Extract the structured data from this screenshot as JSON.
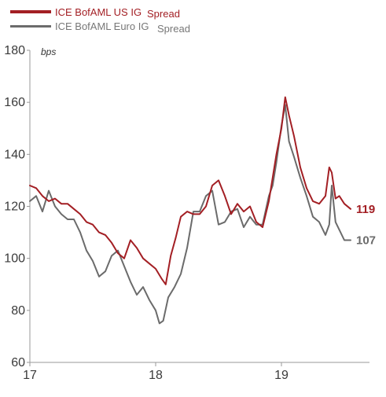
{
  "chart_data": {
    "type": "line",
    "ylabel": "bps",
    "ylim": [
      60,
      180
    ],
    "yticks": [
      60,
      80,
      100,
      120,
      140,
      160,
      180
    ],
    "xlim": [
      17.0,
      19.7
    ],
    "xticks": [
      {
        "value": 17,
        "label": "17"
      },
      {
        "value": 18,
        "label": "18"
      },
      {
        "value": 19,
        "label": "19"
      }
    ],
    "grid": false,
    "legend_position": "top-left",
    "legend": [
      {
        "name": "ICE BofAML US IG",
        "suffix": "Spread",
        "color": "#a31f24"
      },
      {
        "name": "ICE BofAML Euro IG",
        "suffix": "Spread",
        "color": "#6b6b6b"
      }
    ],
    "series": [
      {
        "id": "us",
        "color": "#a31f24",
        "end_label": "119",
        "x": [
          17.0,
          17.05,
          17.1,
          17.15,
          17.2,
          17.25,
          17.3,
          17.35,
          17.4,
          17.45,
          17.5,
          17.55,
          17.6,
          17.65,
          17.7,
          17.75,
          17.8,
          17.85,
          17.9,
          17.95,
          18.0,
          18.05,
          18.08,
          18.12,
          18.16,
          18.2,
          18.25,
          18.3,
          18.35,
          18.4,
          18.45,
          18.5,
          18.55,
          18.6,
          18.65,
          18.7,
          18.75,
          18.8,
          18.85,
          18.9,
          18.93,
          18.96,
          19.0,
          19.03,
          19.06,
          19.1,
          19.15,
          19.2,
          19.25,
          19.3,
          19.35,
          19.38,
          19.4,
          19.43,
          19.46,
          19.5,
          19.55
        ],
        "y": [
          128,
          127,
          124,
          122,
          123,
          121,
          121,
          119,
          117,
          114,
          113,
          110,
          109,
          106,
          102,
          100,
          107,
          104,
          100,
          98,
          96,
          92,
          90,
          101,
          108,
          116,
          118,
          117,
          117,
          120,
          128,
          130,
          124,
          117,
          121,
          118,
          120,
          114,
          112,
          122,
          131,
          140,
          150,
          162,
          155,
          147,
          135,
          127,
          122,
          121,
          124,
          135,
          133,
          123,
          124,
          121,
          119
        ]
      },
      {
        "id": "euro",
        "color": "#6b6b6b",
        "end_label": "107",
        "x": [
          17.0,
          17.05,
          17.1,
          17.15,
          17.2,
          17.25,
          17.3,
          17.35,
          17.4,
          17.45,
          17.5,
          17.55,
          17.6,
          17.65,
          17.7,
          17.75,
          17.8,
          17.85,
          17.9,
          17.95,
          18.0,
          18.03,
          18.06,
          18.1,
          18.15,
          18.2,
          18.25,
          18.3,
          18.35,
          18.4,
          18.45,
          18.5,
          18.55,
          18.6,
          18.65,
          18.7,
          18.75,
          18.8,
          18.85,
          18.9,
          18.93,
          18.96,
          19.0,
          19.03,
          19.06,
          19.1,
          19.15,
          19.2,
          19.25,
          19.3,
          19.35,
          19.38,
          19.4,
          19.43,
          19.46,
          19.5,
          19.55
        ],
        "y": [
          122,
          124,
          118,
          126,
          120,
          117,
          115,
          115,
          110,
          103,
          99,
          93,
          95,
          101,
          103,
          97,
          91,
          86,
          89,
          84,
          80,
          75,
          76,
          85,
          89,
          94,
          104,
          118,
          118,
          124,
          126,
          113,
          114,
          118,
          119,
          112,
          116,
          113,
          113,
          124,
          128,
          137,
          151,
          159,
          145,
          139,
          131,
          124,
          116,
          114,
          109,
          113,
          128,
          114,
          111,
          107,
          107
        ]
      }
    ]
  }
}
